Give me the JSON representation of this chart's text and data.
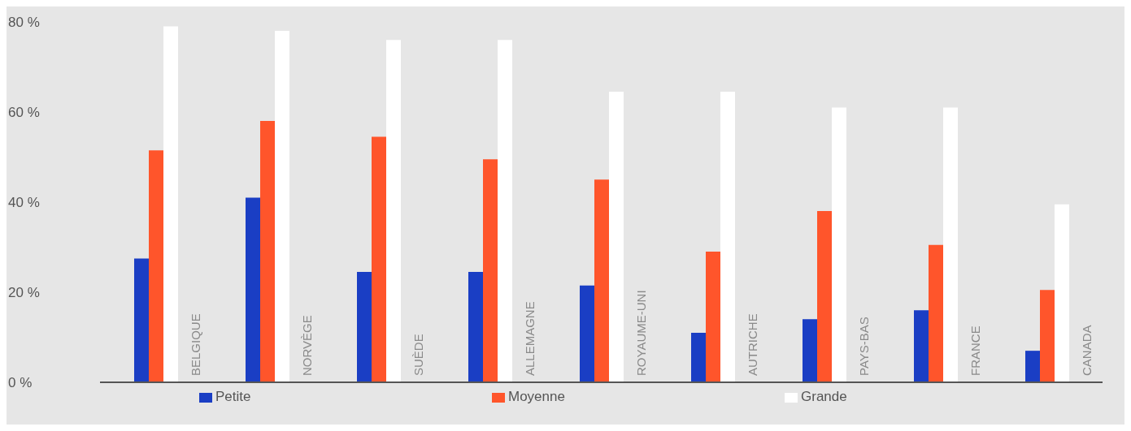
{
  "chart_data": {
    "type": "bar",
    "categories": [
      "BELGIQUE",
      "NORVÈGE",
      "SUÈDE",
      "ALLEMAGNE",
      "ROYAUME-UNI",
      "AUTRICHE",
      "PAYS-BAS",
      "FRANCE",
      "CANADA"
    ],
    "series": [
      {
        "name": "Petite",
        "color": "#1a3ec4",
        "values": [
          27.5,
          41,
          24.5,
          24.5,
          21.5,
          11,
          14,
          16,
          7
        ]
      },
      {
        "name": "Moyenne",
        "color": "#ff552b",
        "values": [
          51.5,
          58,
          54.5,
          49.5,
          45,
          29,
          38,
          30.5,
          20.5
        ]
      },
      {
        "name": "Grande",
        "color": "#ffffff",
        "values": [
          79,
          78,
          76,
          76,
          64.5,
          64.5,
          61,
          61,
          39.5
        ]
      }
    ],
    "ylim": [
      0,
      80
    ],
    "yticks": [
      {
        "value": 0,
        "label": "0 %"
      },
      {
        "value": 20,
        "label": "20 %"
      },
      {
        "value": 40,
        "label": "40 %"
      },
      {
        "value": 60,
        "label": "60 %"
      },
      {
        "value": 80,
        "label": "80 %"
      }
    ],
    "grid": false,
    "legend": "bottom"
  }
}
